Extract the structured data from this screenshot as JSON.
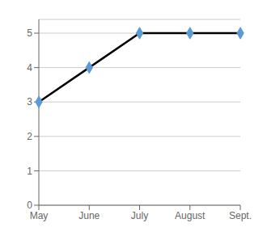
{
  "chart_data": {
    "type": "line",
    "categories": [
      "May",
      "June",
      "July",
      "August",
      "Sept."
    ],
    "values": [
      3,
      4,
      5,
      5,
      5
    ],
    "color": "#000000",
    "colors": [
      "#5B9BD5",
      "#5B9BD5",
      "#5B9BD5",
      "#5B9BD5",
      "#5B9BD5"
    ],
    "marker": "diamond",
    "ylim": [
      0,
      5.4
    ],
    "yticks": [
      0,
      1,
      2,
      3,
      4,
      5
    ],
    "grid": true
  }
}
